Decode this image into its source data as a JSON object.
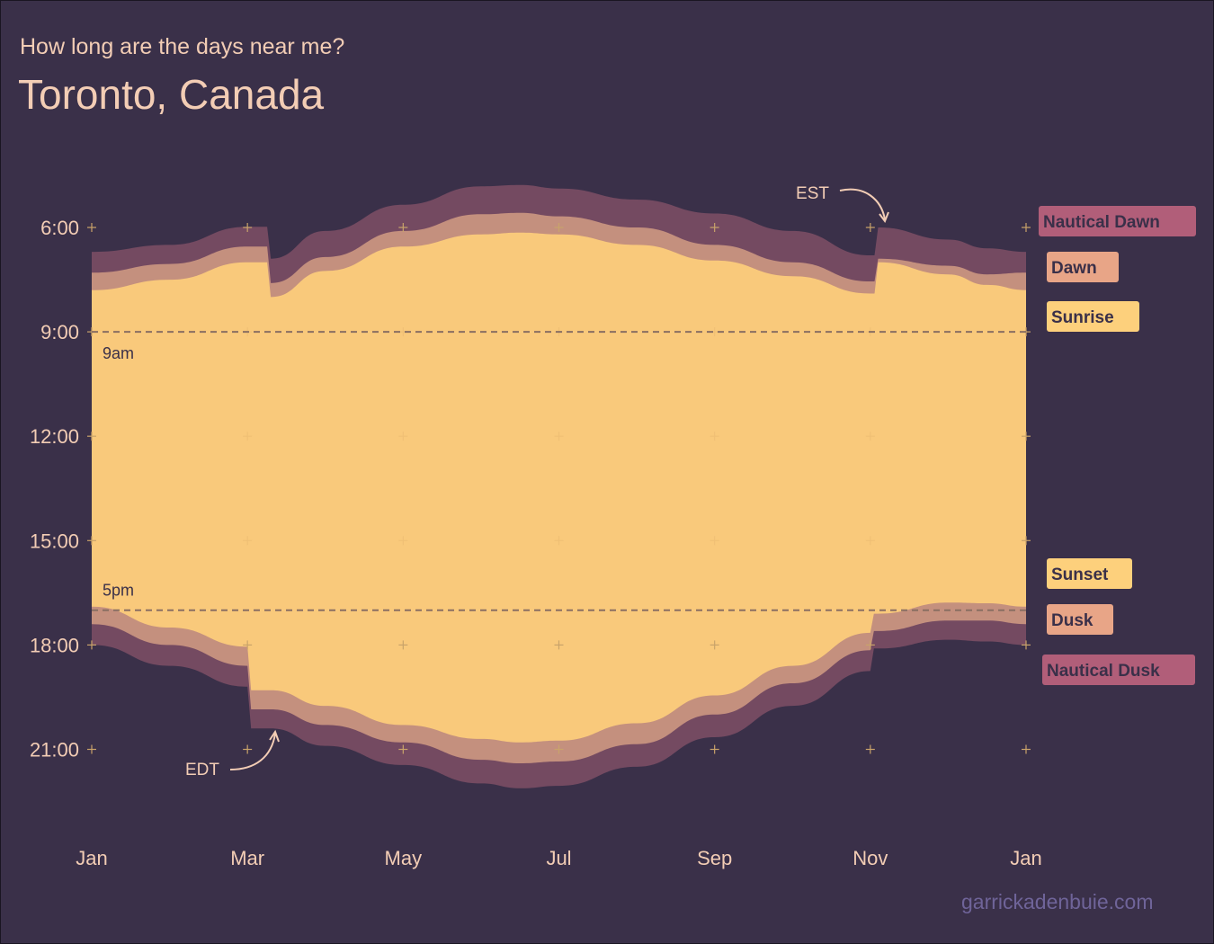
{
  "page": {
    "subtitle": "How long are the days near me?",
    "title": "Toronto, Canada",
    "credit": "garrickadenbuie.com"
  },
  "colors": {
    "background": "#3a3049",
    "day": "#f9c97b",
    "civil": "#c4907e",
    "nautical": "#744a61",
    "label_sunrise": "#fdd07c",
    "label_dawn": "#e8a587",
    "label_nautical": "#b15e79",
    "label_text": "#3a3049",
    "grid_cross": "#c9a36a",
    "ref_line": "#8a6f62"
  },
  "chart_data": {
    "type": "area",
    "title": "Toronto, Canada",
    "subtitle": "How long are the days near me?",
    "x_ticks": [
      "Jan",
      "Mar",
      "May",
      "Jul",
      "Sep",
      "Nov",
      "Jan"
    ],
    "x_tick_months": [
      0,
      2,
      4,
      6,
      8,
      10,
      12
    ],
    "y_ticks": [
      "6:00",
      "9:00",
      "12:00",
      "15:00",
      "18:00",
      "21:00"
    ],
    "y_tick_hours": [
      6,
      9,
      12,
      15,
      18,
      21
    ],
    "xlim": [
      0,
      12
    ],
    "ylim_hours_reversed": [
      3.1,
      24.6
    ],
    "reference_lines": [
      {
        "label": "9am",
        "hour": 9
      },
      {
        "label": "5pm",
        "hour": 17
      }
    ],
    "dst": {
      "start_month": 2.3,
      "end_month": 10.1
    },
    "x_months": [
      0,
      1,
      2,
      2.3,
      3,
      4,
      5,
      5.5,
      6,
      7,
      8,
      9,
      10,
      10.1,
      11,
      11.5,
      12
    ],
    "series": [
      {
        "name": "Nautical Dawn",
        "values": [
          6.7,
          6.5,
          5.98,
          6.9,
          6.1,
          5.35,
          4.82,
          4.78,
          4.88,
          5.2,
          5.6,
          6.1,
          6.8,
          6.0,
          6.35,
          6.6,
          6.7
        ]
      },
      {
        "name": "Dawn",
        "values": [
          7.3,
          7.05,
          6.55,
          7.6,
          6.85,
          6.1,
          5.62,
          5.58,
          5.68,
          6.0,
          6.5,
          7.0,
          7.55,
          6.9,
          7.1,
          7.35,
          7.3
        ]
      },
      {
        "name": "Sunrise",
        "values": [
          7.8,
          7.5,
          7.0,
          8.0,
          7.25,
          6.55,
          6.2,
          6.15,
          6.2,
          6.5,
          6.95,
          7.4,
          7.9,
          7.0,
          7.35,
          7.65,
          7.8
        ]
      },
      {
        "name": "Sunset",
        "values": [
          16.9,
          17.5,
          18.05,
          19.3,
          19.75,
          20.3,
          20.7,
          20.8,
          20.75,
          20.25,
          19.45,
          18.6,
          17.65,
          17.1,
          16.78,
          16.8,
          16.9
        ]
      },
      {
        "name": "Dusk",
        "values": [
          17.4,
          18.0,
          18.6,
          19.85,
          20.3,
          20.8,
          21.3,
          21.4,
          21.35,
          20.85,
          20.0,
          19.1,
          18.15,
          17.6,
          17.3,
          17.3,
          17.4
        ]
      },
      {
        "name": "Nautical Dusk",
        "values": [
          18.0,
          18.6,
          19.2,
          20.4,
          20.9,
          21.45,
          21.98,
          22.12,
          22.05,
          21.5,
          20.65,
          19.75,
          18.75,
          18.1,
          17.85,
          17.9,
          18.0
        ]
      }
    ],
    "annotations": [
      {
        "text": "EST",
        "month": 10.1,
        "hour": 5.8
      },
      {
        "text": "EDT",
        "month": 2.3,
        "hour": 20.4
      }
    ],
    "legend": "right"
  }
}
